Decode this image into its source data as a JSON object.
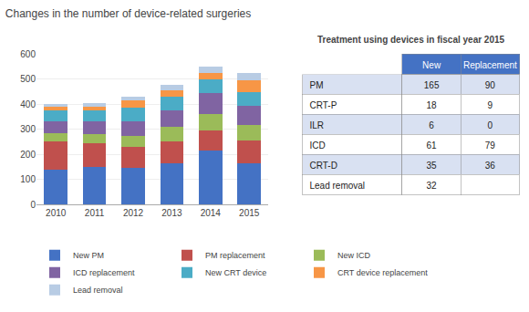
{
  "chart_data": [
    {
      "type": "bar",
      "title": "Changes in the number of device-related surgeries",
      "categories": [
        "2010",
        "2011",
        "2012",
        "2013",
        "2014",
        "2015"
      ],
      "series": [
        {
          "name": "New PM",
          "color": "#4472C4",
          "values": [
            140,
            150,
            145,
            163,
            215,
            165
          ]
        },
        {
          "name": "PM replacement",
          "color": "#C0504D",
          "values": [
            110,
            95,
            85,
            88,
            80,
            90
          ]
        },
        {
          "name": "New ICD",
          "color": "#9BBB59",
          "values": [
            35,
            35,
            45,
            60,
            65,
            61
          ]
        },
        {
          "name": "ICD replacement",
          "color": "#8064A2",
          "values": [
            45,
            50,
            55,
            65,
            85,
            79
          ]
        },
        {
          "name": "New CRT device",
          "color": "#4BACC6",
          "values": [
            45,
            45,
            55,
            55,
            55,
            54
          ]
        },
        {
          "name": "CRT device replacement",
          "color": "#F79646",
          "values": [
            15,
            15,
            30,
            25,
            25,
            45
          ]
        },
        {
          "name": "Lead removal",
          "color": "#B8CCE4",
          "values": [
            10,
            15,
            15,
            20,
            25,
            32
          ]
        }
      ],
      "stacked": true,
      "ylim": [
        0,
        600
      ],
      "yticks": [
        0,
        100,
        200,
        300,
        400,
        500,
        600
      ],
      "grid": true,
      "legend": "bottom",
      "background": "#FFFFFF"
    },
    {
      "type": "table",
      "title": "Treatment using devices in fiscal year 2015",
      "header": [
        null,
        "New",
        "Replacement"
      ],
      "rows": [
        [
          "PM",
          "165",
          "90"
        ],
        [
          "CRT-P",
          "18",
          "9"
        ],
        [
          "ILR",
          "6",
          "0"
        ],
        [
          "ICD",
          "61",
          "79"
        ],
        [
          "CRT-D",
          "35",
          "36"
        ],
        [
          "Lead removal",
          "32",
          null
        ]
      ],
      "header_color": "#4472C4",
      "header_text_color": "#FFFFFF",
      "row_colors": [
        "#D9E1F2",
        "#FFFFFF"
      ]
    }
  ]
}
